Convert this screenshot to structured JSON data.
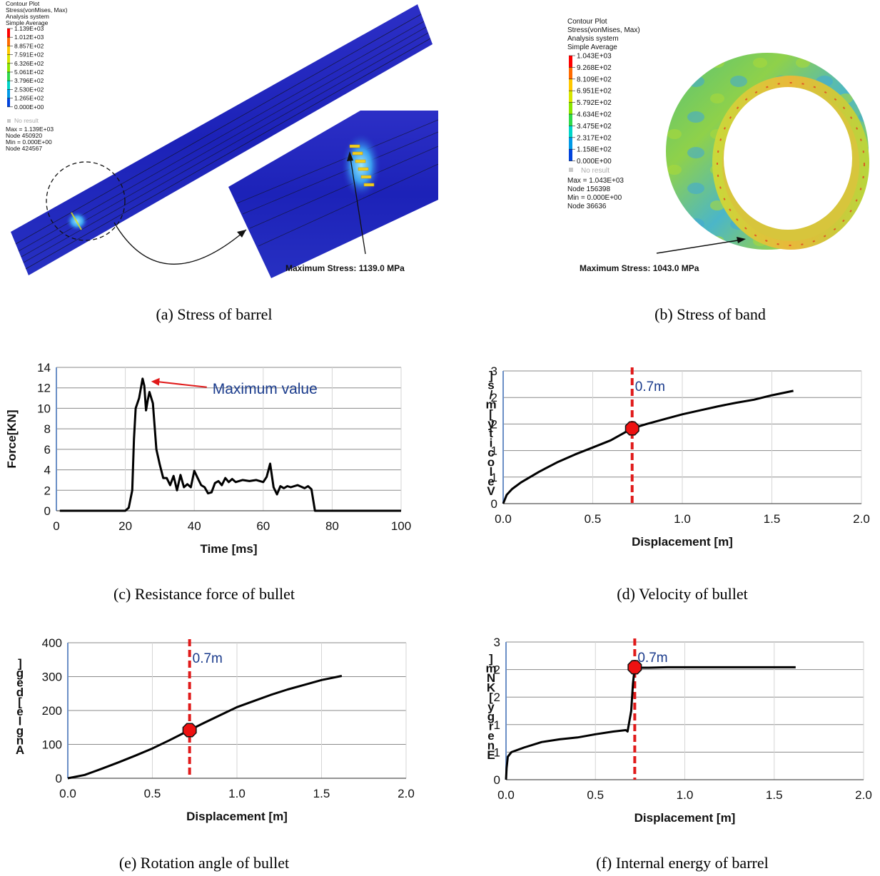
{
  "panel_a": {
    "legend": {
      "header": [
        "Contour Plot",
        "Stress(vonMises, Max)",
        "Analysis system",
        "Simple Average"
      ],
      "levels": [
        "1.139E+03",
        "1.012E+03",
        "8.857E+02",
        "7.591E+02",
        "6.326E+02",
        "5.061E+02",
        "3.796E+02",
        "2.530E+02",
        "1.265E+02",
        "0.000E+00"
      ],
      "colors": [
        "#ff0000",
        "#ff6a00",
        "#ffc800",
        "#d7e600",
        "#8ae600",
        "#2fd94a",
        "#00d4c8",
        "#0099e6",
        "#0044dd",
        "#1a1aa0"
      ],
      "no_result": "No result",
      "footer": [
        "Max = 1.139E+03",
        "Node 450920",
        "Min = 0.000E+00",
        "Node 424567"
      ]
    },
    "annotation": "Maximum Stress: 1139.0 MPa",
    "caption": "(a) Stress of barrel"
  },
  "panel_b": {
    "legend": {
      "header": [
        "Contour Plot",
        "Stress(vonMises, Max)",
        "Analysis system",
        "Simple Average"
      ],
      "levels": [
        "1.043E+03",
        "9.268E+02",
        "8.109E+02",
        "6.951E+02",
        "5.792E+02",
        "4.634E+02",
        "3.475E+02",
        "2.317E+02",
        "1.158E+02",
        "0.000E+00"
      ],
      "colors": [
        "#ff0000",
        "#ff6a00",
        "#ffc800",
        "#d7e600",
        "#8ae600",
        "#2fd94a",
        "#00d4c8",
        "#0099e6",
        "#0044dd",
        "#1a1aa0"
      ],
      "no_result": "No result",
      "footer": [
        "Max = 1.043E+03",
        "Node 156398",
        "Min = 0.000E+00",
        "Node 36636"
      ]
    },
    "annotation": "Maximum Stress: 1043.0 MPa",
    "caption": "(b) Stress of band"
  },
  "chart_data": [
    {
      "id": "c",
      "type": "line",
      "xlabel": "Time [ms]",
      "ylabel": "Force[KN]",
      "xlim": [
        0,
        100
      ],
      "ylim": [
        0,
        14
      ],
      "xticks": [
        "0",
        "20",
        "40",
        "60",
        "80",
        "100"
      ],
      "yticks": [
        "0",
        "2",
        "4",
        "6",
        "8",
        "10",
        "12",
        "14"
      ],
      "grid": "horizontal",
      "annotation": "Maximum value",
      "caption": "(c) Resistance force of bullet",
      "series": [
        {
          "color": "#000000",
          "points": [
            [
              1,
              0
            ],
            [
              20,
              0
            ],
            [
              21,
              0.3
            ],
            [
              22,
              2
            ],
            [
              22.5,
              7
            ],
            [
              23,
              10
            ],
            [
              24,
              11
            ],
            [
              25,
              12.9
            ],
            [
              25.5,
              12.2
            ],
            [
              26,
              9.8
            ],
            [
              26.5,
              10.8
            ],
            [
              27,
              11.6
            ],
            [
              28,
              10.5
            ],
            [
              29,
              6
            ],
            [
              30,
              4.5
            ],
            [
              31,
              3.2
            ],
            [
              32,
              3.2
            ],
            [
              33,
              2.5
            ],
            [
              34,
              3.4
            ],
            [
              35,
              2
            ],
            [
              36,
              3.5
            ],
            [
              37,
              2.3
            ],
            [
              38,
              2.6
            ],
            [
              39,
              2.3
            ],
            [
              40,
              3.9
            ],
            [
              41,
              3.2
            ],
            [
              42,
              2.5
            ],
            [
              43,
              2.3
            ],
            [
              44,
              1.7
            ],
            [
              45,
              1.8
            ],
            [
              46,
              2.7
            ],
            [
              47,
              2.9
            ],
            [
              48,
              2.5
            ],
            [
              49,
              3.2
            ],
            [
              50,
              2.8
            ],
            [
              51,
              3.1
            ],
            [
              52,
              2.8
            ],
            [
              54,
              3
            ],
            [
              56,
              2.9
            ],
            [
              58,
              3
            ],
            [
              60,
              2.8
            ],
            [
              61,
              3.3
            ],
            [
              62,
              4.6
            ],
            [
              63,
              2.3
            ],
            [
              64,
              1.6
            ],
            [
              65,
              2.4
            ],
            [
              66,
              2.2
            ],
            [
              67,
              2.4
            ],
            [
              68,
              2.3
            ],
            [
              70,
              2.5
            ],
            [
              72,
              2.2
            ],
            [
              73,
              2.4
            ],
            [
              74,
              2.1
            ],
            [
              75,
              0
            ],
            [
              100,
              0
            ]
          ]
        }
      ]
    },
    {
      "id": "d",
      "type": "line",
      "xlabel": "Displacement [m]",
      "ylabel": "Velocity [m/s]",
      "xlim": [
        0,
        2
      ],
      "ylim": [
        0,
        3
      ],
      "xticks": [
        "0.0",
        "0.5",
        "1.0",
        "1.5",
        "2.0"
      ],
      "yticks": [
        "0",
        "1",
        "1",
        "2",
        "2",
        "3"
      ],
      "grid": "horizontal",
      "vline": {
        "x": 0.72,
        "label": "0.7m"
      },
      "marker": {
        "x": 0.72,
        "y": 1.7
      },
      "caption": "(d) Velocity of bullet",
      "series": [
        {
          "color": "#000000",
          "points": [
            [
              0,
              0
            ],
            [
              0.02,
              0.2
            ],
            [
              0.05,
              0.33
            ],
            [
              0.1,
              0.48
            ],
            [
              0.2,
              0.72
            ],
            [
              0.3,
              0.93
            ],
            [
              0.4,
              1.11
            ],
            [
              0.5,
              1.27
            ],
            [
              0.6,
              1.43
            ],
            [
              0.72,
              1.7
            ],
            [
              0.8,
              1.8
            ],
            [
              0.9,
              1.91
            ],
            [
              1.0,
              2.02
            ],
            [
              1.1,
              2.11
            ],
            [
              1.2,
              2.2
            ],
            [
              1.3,
              2.28
            ],
            [
              1.4,
              2.35
            ],
            [
              1.5,
              2.45
            ],
            [
              1.62,
              2.55
            ]
          ]
        }
      ]
    },
    {
      "id": "e",
      "type": "line",
      "xlabel": "Displacement [m]",
      "ylabel": "Angle [deg]",
      "xlim": [
        0,
        2
      ],
      "ylim": [
        0,
        400
      ],
      "xticks": [
        "0.0",
        "0.5",
        "1.0",
        "1.5",
        "2.0"
      ],
      "yticks": [
        "0",
        "100",
        "200",
        "300",
        "400"
      ],
      "grid": "horizontal",
      "vline": {
        "x": 0.72,
        "label": "0.7m"
      },
      "marker": {
        "x": 0.72,
        "y": 142
      },
      "caption": "(e) Rotation angle of bullet",
      "series": [
        {
          "color": "#000000",
          "points": [
            [
              0,
              0
            ],
            [
              0.1,
              10
            ],
            [
              0.2,
              28
            ],
            [
              0.3,
              47
            ],
            [
              0.4,
              67
            ],
            [
              0.5,
              88
            ],
            [
              0.6,
              112
            ],
            [
              0.72,
              142
            ],
            [
              0.8,
              162
            ],
            [
              0.9,
              186
            ],
            [
              1.0,
              210
            ],
            [
              1.1,
              228
            ],
            [
              1.2,
              246
            ],
            [
              1.3,
              262
            ],
            [
              1.4,
              276
            ],
            [
              1.5,
              290
            ],
            [
              1.62,
              302
            ]
          ]
        }
      ]
    },
    {
      "id": "f",
      "type": "line",
      "xlabel": "Displacement [m]",
      "ylabel": "Energy [KNm]",
      "xlim": [
        0,
        2
      ],
      "ylim": [
        0,
        3
      ],
      "xticks": [
        "0.0",
        "0.5",
        "1.0",
        "1.5",
        "2.0"
      ],
      "yticks": [
        "0",
        "1",
        "1",
        "2",
        "2",
        "3"
      ],
      "grid": "horizontal",
      "vline": {
        "x": 0.72,
        "label": "0.7m"
      },
      "marker": {
        "x": 0.72,
        "y": 2.45
      },
      "caption": "(f) Internal energy of barrel",
      "series": [
        {
          "color": "#000000",
          "points": [
            [
              0,
              0
            ],
            [
              0.003,
              0.25
            ],
            [
              0.01,
              0.5
            ],
            [
              0.03,
              0.6
            ],
            [
              0.1,
              0.7
            ],
            [
              0.2,
              0.82
            ],
            [
              0.3,
              0.88
            ],
            [
              0.4,
              0.92
            ],
            [
              0.5,
              0.99
            ],
            [
              0.6,
              1.05
            ],
            [
              0.67,
              1.08
            ],
            [
              0.68,
              1.05
            ],
            [
              0.7,
              1.5
            ],
            [
              0.71,
              2.1
            ],
            [
              0.72,
              2.45
            ],
            [
              0.75,
              2.44
            ],
            [
              0.8,
              2.44
            ],
            [
              0.9,
              2.45
            ],
            [
              1.0,
              2.45
            ],
            [
              1.2,
              2.45
            ],
            [
              1.4,
              2.45
            ],
            [
              1.62,
              2.45
            ]
          ]
        }
      ]
    }
  ]
}
